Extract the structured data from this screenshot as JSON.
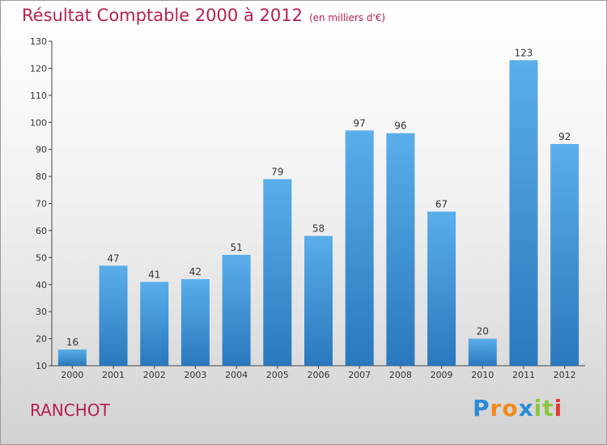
{
  "chart_data": {
    "type": "bar",
    "title": "Résultat Comptable 2000 à 2012",
    "subtitle": "(en milliers d'€)",
    "xlabel": "",
    "ylabel": "",
    "categories": [
      "2000",
      "2001",
      "2002",
      "2003",
      "2004",
      "2005",
      "2006",
      "2007",
      "2008",
      "2009",
      "2010",
      "2011",
      "2012"
    ],
    "values": [
      16,
      47,
      41,
      42,
      51,
      79,
      58,
      97,
      96,
      67,
      20,
      123,
      92
    ],
    "ylim": [
      10,
      130
    ],
    "yticks": [
      10,
      20,
      30,
      40,
      50,
      60,
      70,
      80,
      90,
      100,
      110,
      120,
      130
    ],
    "grid": false,
    "legend": "none",
    "bar_color": "#3a8fd6"
  },
  "commune_name": "RANCHOT",
  "logo": {
    "text": "Proxiti",
    "letters": [
      "P",
      "r",
      "o",
      "x",
      "i",
      "t",
      "i"
    ],
    "colors": [
      "#2a8bd8",
      "#f08a1c",
      "#f08a1c",
      "#2a8bd8",
      "#8cc63f",
      "#8cc63f",
      "#e03a3a"
    ]
  },
  "colors": {
    "title": "#b5214c",
    "bar_top": "#5aaeea",
    "bar_bottom": "#2a78bd",
    "axis": "#444444"
  }
}
